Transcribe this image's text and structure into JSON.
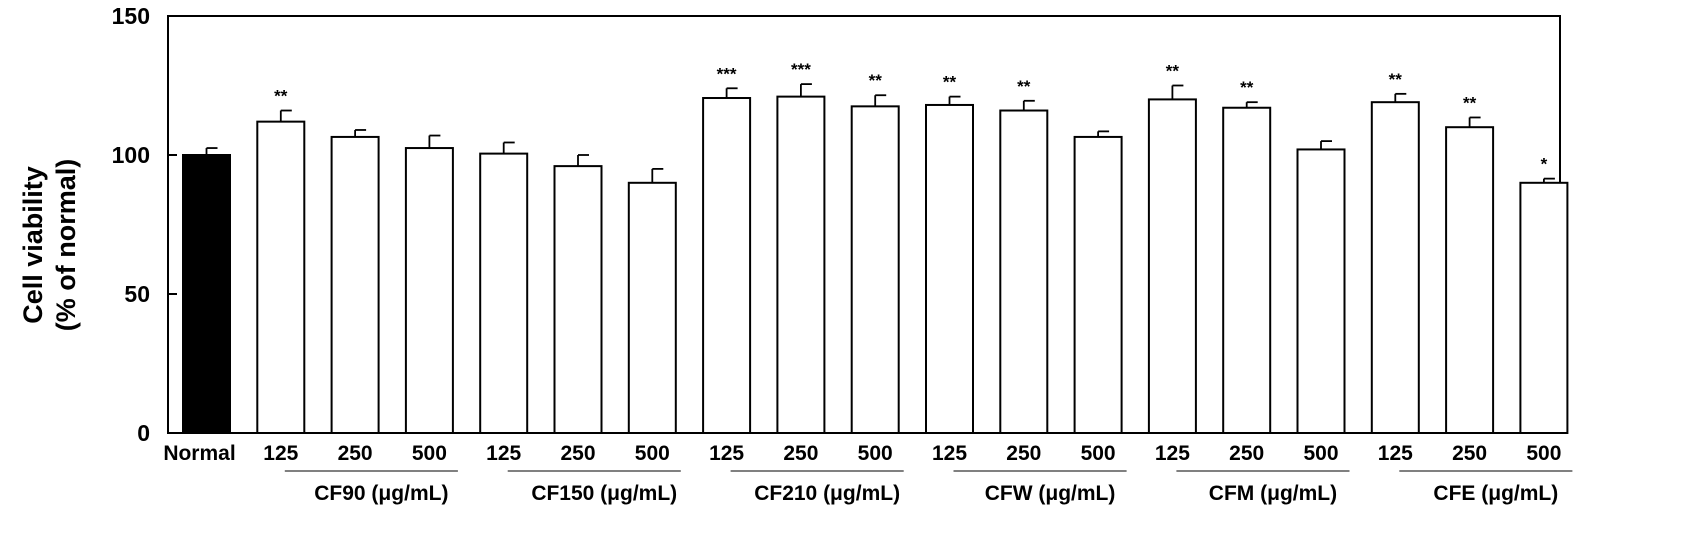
{
  "chart_data": {
    "type": "bar",
    "title": "",
    "xlabel": "",
    "ylabel_line1": "Cell viability",
    "ylabel_line2": "(% of normal)",
    "ylim": [
      0,
      150
    ],
    "yticks": [
      0,
      50,
      100,
      150
    ],
    "grid": false,
    "bar_colors": {
      "control": "#000000",
      "treatment": "#ffffff",
      "edge": "#000000"
    },
    "bars": [
      {
        "label": "Normal",
        "value": 100.0,
        "err": 2.5,
        "sig": "",
        "control": true
      },
      {
        "label": "125",
        "value": 112.0,
        "err": 4.0,
        "sig": "**"
      },
      {
        "label": "250",
        "value": 106.5,
        "err": 2.5,
        "sig": ""
      },
      {
        "label": "500",
        "value": 102.5,
        "err": 4.5,
        "sig": ""
      },
      {
        "label": "125",
        "value": 100.5,
        "err": 4.0,
        "sig": ""
      },
      {
        "label": "250",
        "value": 96.0,
        "err": 4.0,
        "sig": ""
      },
      {
        "label": "500",
        "value": 90.0,
        "err": 5.0,
        "sig": ""
      },
      {
        "label": "125",
        "value": 120.5,
        "err": 3.5,
        "sig": "***"
      },
      {
        "label": "250",
        "value": 121.0,
        "err": 4.5,
        "sig": "***"
      },
      {
        "label": "500",
        "value": 117.5,
        "err": 4.0,
        "sig": "**"
      },
      {
        "label": "125",
        "value": 118.0,
        "err": 3.0,
        "sig": "**"
      },
      {
        "label": "250",
        "value": 116.0,
        "err": 3.5,
        "sig": "**"
      },
      {
        "label": "500",
        "value": 106.5,
        "err": 2.0,
        "sig": ""
      },
      {
        "label": "125",
        "value": 120.0,
        "err": 5.0,
        "sig": "**"
      },
      {
        "label": "250",
        "value": 117.0,
        "err": 2.0,
        "sig": "**"
      },
      {
        "label": "500",
        "value": 102.0,
        "err": 3.0,
        "sig": ""
      },
      {
        "label": "125",
        "value": 119.0,
        "err": 3.0,
        "sig": "**"
      },
      {
        "label": "250",
        "value": 110.0,
        "err": 3.5,
        "sig": "**"
      },
      {
        "label": "500",
        "value": 90.0,
        "err": 1.5,
        "sig": "*"
      }
    ],
    "groups": [
      {
        "name": "CF90 (μg/mL)",
        "bars": [
          1,
          3
        ]
      },
      {
        "name": "CF150 (μg/mL)",
        "bars": [
          4,
          6
        ]
      },
      {
        "name": "CF210 (μg/mL)",
        "bars": [
          7,
          9
        ]
      },
      {
        "name": "CFW (μg/mL)",
        "bars": [
          10,
          12
        ]
      },
      {
        "name": "CFM (μg/mL)",
        "bars": [
          13,
          15
        ]
      },
      {
        "name": "CFE (μg/mL)",
        "bars": [
          16,
          18
        ]
      }
    ]
  }
}
